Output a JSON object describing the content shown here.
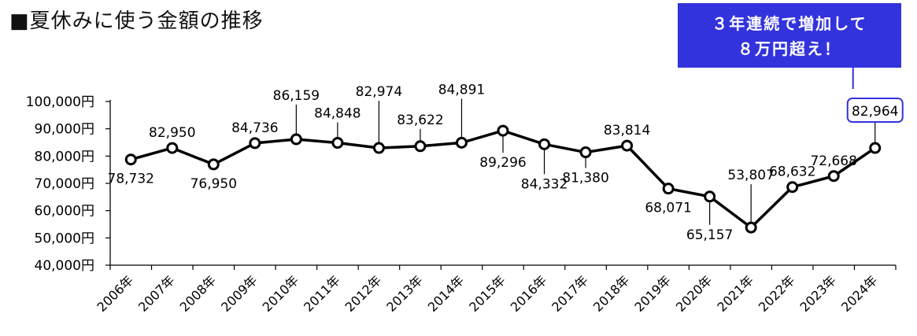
{
  "chart_data": {
    "type": "line",
    "title": "■夏休みに使う金額の推移",
    "categories": [
      "2006年",
      "2007年",
      "2008年",
      "2009年",
      "2010年",
      "2011年",
      "2012年",
      "2013年",
      "2014年",
      "2015年",
      "2016年",
      "2017年",
      "2018年",
      "2019年",
      "2020年",
      "2021年",
      "2022年",
      "2023年",
      "2024年"
    ],
    "values": [
      78732,
      82950,
      76950,
      84736,
      86159,
      84848,
      82974,
      83622,
      84891,
      89296,
      84332,
      81380,
      83814,
      68071,
      65157,
      53807,
      68632,
      72668,
      82964
    ],
    "value_labels": [
      "78,732",
      "82,950",
      "76,950",
      "84,736",
      "86,159",
      "84,848",
      "82,974",
      "83,622",
      "84,891",
      "89,296",
      "84,332",
      "81,380",
      "83,814",
      "68,071",
      "65,157",
      "53,807",
      "68,632",
      "72,668",
      "82,964"
    ],
    "y_ticks": [
      40000,
      50000,
      60000,
      70000,
      80000,
      90000,
      100000
    ],
    "y_tick_labels": [
      "40,000円",
      "50,000円",
      "60,000円",
      "70,000円",
      "80,000円",
      "90,000円",
      "100,000円"
    ],
    "ylim": [
      40000,
      100000
    ],
    "xlabel": "",
    "ylabel": "",
    "grid": false,
    "legend": "none",
    "line_color": "#000000",
    "highlight_color": "#3333dd",
    "annotation": {
      "lines": [
        "３年連続で増加して",
        "８万円超え！"
      ]
    }
  }
}
